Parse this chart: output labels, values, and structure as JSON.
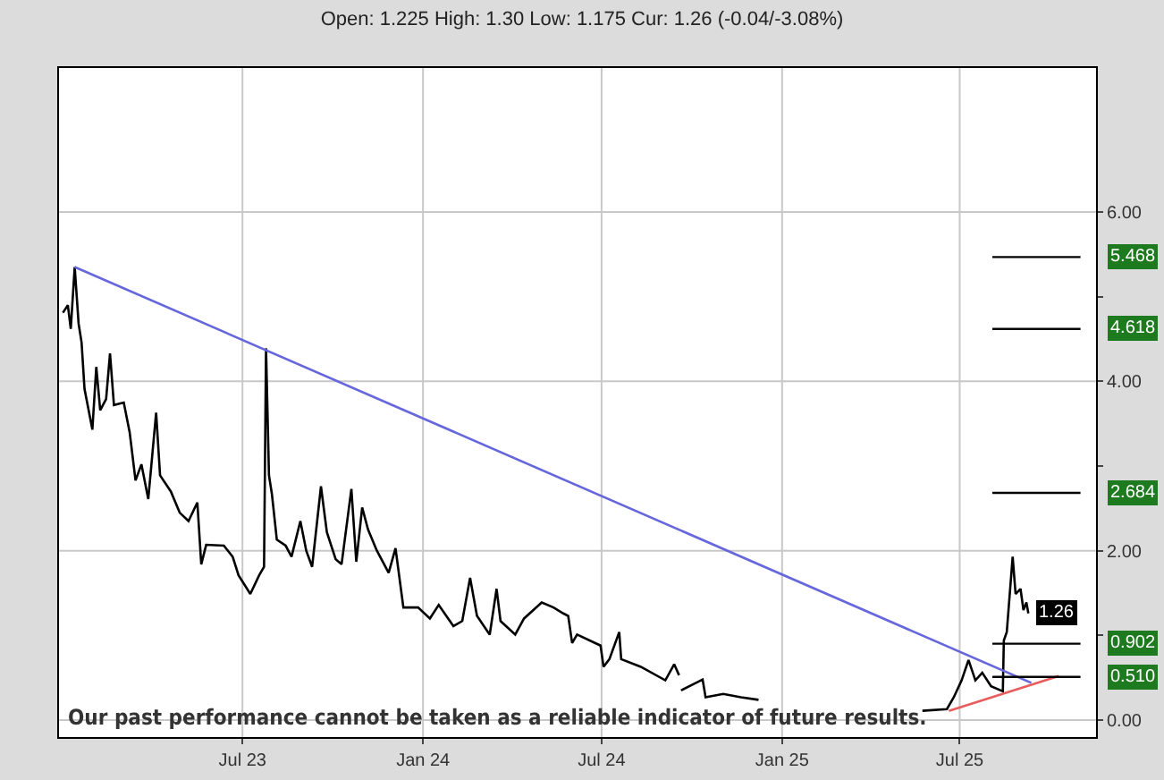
{
  "chart_data": {
    "type": "line",
    "title": "Open: 1.225 High: 1.30 Low: 1.175 Cur: 1.26 (-0.04/-3.08%)",
    "xlim": [
      "2022-12-26",
      "2025-11-17"
    ],
    "xticks": [
      {
        "value": "2023-07-01",
        "label": "Jul 23"
      },
      {
        "value": "2024-01-01",
        "label": "Jan 24"
      },
      {
        "value": "2024-07-01",
        "label": "Jul 24"
      },
      {
        "value": "2025-01-01",
        "label": "Jan 25"
      },
      {
        "value": "2025-07-01",
        "label": "Jul 25"
      }
    ],
    "ylim": [
      -0.2,
      7.7
    ],
    "yticks": [
      {
        "value": 0,
        "label": "0.00"
      },
      {
        "value": 1,
        "label": null
      },
      {
        "value": 2,
        "label": "2.00"
      },
      {
        "value": 3,
        "label": null
      },
      {
        "value": 4,
        "label": "4.00"
      },
      {
        "value": 5,
        "label": null
      },
      {
        "value": 6,
        "label": "6.00"
      }
    ],
    "grid": true,
    "legend": false,
    "marker": "none",
    "line_style": "solid",
    "series": [
      {
        "color": "#000000",
        "x": [
          "2022-12-30",
          "2023-01-04",
          "2023-01-07",
          "2023-01-11",
          "2023-01-15",
          "2023-01-18",
          "2023-01-21",
          "2023-01-29",
          "2023-02-02",
          "2023-02-06",
          "2023-02-12",
          "2023-02-16",
          "2023-02-20",
          "2023-03-02",
          "2023-03-08",
          "2023-03-14",
          "2023-03-20",
          "2023-03-27",
          "2023-04-04",
          "2023-04-08",
          "2023-04-19",
          "2023-04-28",
          "2023-05-07",
          "2023-05-16",
          "2023-05-20",
          "2023-05-25",
          "2023-06-12",
          "2023-06-21",
          "2023-06-27",
          "2023-07-09",
          "2023-07-18",
          "2023-07-23",
          "2023-07-25",
          "2023-07-28",
          "2023-07-31",
          "2023-08-05",
          "2023-08-14",
          "2023-08-20",
          "2023-08-29",
          "2023-09-04",
          "2023-09-10",
          "2023-09-19",
          "2023-09-25",
          "2023-10-04",
          "2023-10-10",
          "2023-10-20",
          "2023-10-25",
          "2023-10-31",
          "2023-11-06",
          "2023-11-15",
          "2023-11-27",
          "2023-12-04",
          "2023-12-12",
          "2023-12-27",
          "2024-01-08",
          "2024-01-17",
          "2024-02-01",
          "2024-02-10",
          "2024-02-18",
          "2024-02-25",
          "2024-03-09",
          "2024-03-16",
          "2024-03-20",
          "2024-04-04",
          "2024-04-13",
          "2024-05-01",
          "2024-05-13",
          "2024-05-23",
          "2024-05-28",
          "2024-06-01",
          "2024-06-06",
          "2024-06-30",
          "2024-07-03",
          "2024-07-09",
          "2024-07-19",
          "2024-07-21",
          "2024-08-10",
          "2024-09-04",
          "2024-09-13",
          "2024-09-18",
          "2024-09-19",
          "2024-09-20",
          "2024-10-12",
          "2024-10-15",
          "2024-11-02",
          "2024-11-20",
          "2024-12-08",
          "2025-01-01",
          "2025-05-24",
          "2025-06-18",
          "2025-06-25",
          "2025-07-03",
          "2025-07-10",
          "2025-07-17",
          "2025-07-24",
          "2025-08-02",
          "2025-08-14",
          "2025-08-15",
          "2025-08-18",
          "2025-08-24",
          "2025-08-27",
          "2025-09-01",
          "2025-09-04",
          "2025-09-07",
          "2025-09-09"
        ],
        "values": [
          4.81,
          4.9,
          4.62,
          5.35,
          4.68,
          4.46,
          3.91,
          3.43,
          4.17,
          3.66,
          3.79,
          4.33,
          3.72,
          3.75,
          3.4,
          2.83,
          3.02,
          2.61,
          3.63,
          2.89,
          2.7,
          2.45,
          2.35,
          2.57,
          1.84,
          2.07,
          2.06,
          1.93,
          1.71,
          1.49,
          1.71,
          1.81,
          4.39,
          2.89,
          2.67,
          2.13,
          2.06,
          1.93,
          2.35,
          2.0,
          1.81,
          2.76,
          2.22,
          1.9,
          1.84,
          2.73,
          1.87,
          2.51,
          2.25,
          2.0,
          1.74,
          2.03,
          1.33,
          1.33,
          1.2,
          1.36,
          1.11,
          1.17,
          1.68,
          1.23,
          1.01,
          1.55,
          1.17,
          1.01,
          1.2,
          1.39,
          1.33,
          1.26,
          1.23,
          0.91,
          1.01,
          0.88,
          0.63,
          0.72,
          1.04,
          0.72,
          0.63,
          0.47,
          0.66,
          0.53,
          null,
          0.35,
          0.48,
          0.27,
          0.31,
          0.27,
          0.24,
          null,
          0.11,
          0.13,
          0.27,
          0.47,
          0.71,
          0.47,
          0.56,
          0.4,
          0.34,
          0.94,
          1.04,
          1.93,
          1.49,
          1.55,
          1.3,
          1.39,
          1.26
        ],
        "value_labels": [
          null,
          null,
          null,
          null,
          null,
          null,
          null,
          null,
          null,
          null,
          null,
          null,
          null,
          null,
          null,
          null,
          null,
          null,
          null,
          null,
          null,
          null,
          null,
          null,
          null,
          null,
          null,
          null,
          null,
          null,
          null,
          null,
          null,
          null,
          null,
          null,
          null,
          null,
          null,
          null,
          null,
          null,
          null,
          null,
          null,
          null,
          null,
          null,
          null,
          null,
          null,
          null,
          null,
          null,
          null,
          null,
          null,
          null,
          null,
          null,
          null,
          null,
          null,
          null,
          null,
          null,
          null,
          null,
          null,
          null,
          null,
          null,
          null,
          null,
          null,
          null,
          null,
          null,
          null,
          null,
          null,
          null,
          null,
          null,
          null,
          null,
          null,
          null,
          null,
          null,
          null,
          null,
          null,
          null,
          null,
          null,
          null,
          null,
          null,
          null,
          null,
          null,
          null,
          null,
          "1.26"
        ]
      },
      {
        "color": "#6666dd",
        "x": [
          "2023-01-11",
          "2025-09-12"
        ],
        "values": [
          5.35,
          0.44
        ]
      },
      {
        "color": "#e85c5c",
        "x": [
          "2025-06-20",
          "2025-10-10"
        ],
        "values": [
          0.11,
          0.52
        ]
      }
    ],
    "ref_lines": [
      {
        "axis": "y",
        "value": 5.468,
        "label": "5.468",
        "color": "#000000"
      },
      {
        "axis": "y",
        "value": 4.618,
        "label": "4.618",
        "color": "#000000"
      },
      {
        "axis": "y",
        "value": 2.684,
        "label": "2.684",
        "color": "#000000"
      },
      {
        "axis": "y",
        "value": 0.902,
        "label": "0.902",
        "color": "#000000"
      },
      {
        "axis": "y",
        "value": 0.51,
        "label": "0.510",
        "color": "#000000"
      }
    ],
    "annotations": [
      "Our past performance cannot be taken as a reliable indicator of future results."
    ]
  }
}
